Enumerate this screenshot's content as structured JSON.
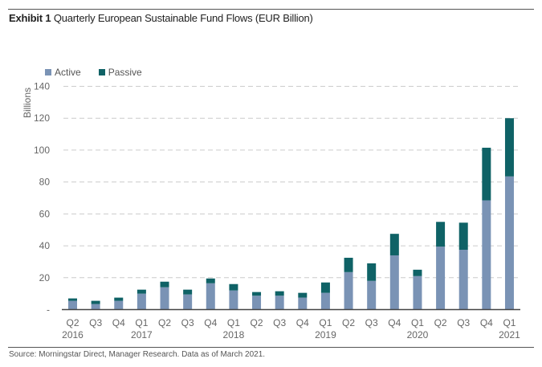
{
  "title": {
    "bold": "Exhibit 1",
    "rest": "Quarterly European Sustainable Fund Flows (EUR Billion)"
  },
  "source": "Source: Morningstar Direct, Manager Research. Data as of March 2021.",
  "colors": {
    "active": "#7a93b5",
    "passive": "#0f6266",
    "grid": "#cccccc",
    "axis": "#444444"
  },
  "chart_data": {
    "type": "bar",
    "stacked": true,
    "title": "Quarterly European Sustainable Fund Flows (EUR Billion)",
    "xlabel": "",
    "ylabel": "Billions",
    "ylim": [
      0,
      140
    ],
    "yticks": [
      0,
      20,
      40,
      60,
      80,
      100,
      120,
      140
    ],
    "ytick_labels": [
      "-",
      "20",
      "40",
      "60",
      "80",
      "100",
      "120",
      "140"
    ],
    "grid": true,
    "legend_position": "top-left",
    "categories": [
      {
        "q": "Q2",
        "year": "2016"
      },
      {
        "q": "Q3",
        "year": ""
      },
      {
        "q": "Q4",
        "year": ""
      },
      {
        "q": "Q1",
        "year": "2017"
      },
      {
        "q": "Q2",
        "year": ""
      },
      {
        "q": "Q3",
        "year": ""
      },
      {
        "q": "Q4",
        "year": ""
      },
      {
        "q": "Q1",
        "year": "2018"
      },
      {
        "q": "Q2",
        "year": ""
      },
      {
        "q": "Q3",
        "year": ""
      },
      {
        "q": "Q4",
        "year": ""
      },
      {
        "q": "Q1",
        "year": "2019"
      },
      {
        "q": "Q2",
        "year": ""
      },
      {
        "q": "Q3",
        "year": ""
      },
      {
        "q": "Q4",
        "year": ""
      },
      {
        "q": "Q1",
        "year": "2020"
      },
      {
        "q": "Q2",
        "year": ""
      },
      {
        "q": "Q3",
        "year": ""
      },
      {
        "q": "Q4",
        "year": ""
      },
      {
        "q": "Q1",
        "year": "2021"
      }
    ],
    "series": [
      {
        "name": "Active",
        "values": [
          5.5,
          3.5,
          5.5,
          10,
          14,
          9.5,
          16.5,
          12,
          8.7,
          8.7,
          7.5,
          10.5,
          23.5,
          18,
          34,
          21,
          39.5,
          37.5,
          68.5,
          83.5
        ]
      },
      {
        "name": "Passive",
        "values": [
          1.5,
          2,
          2,
          2.5,
          3.5,
          3,
          3,
          4,
          2.3,
          2.8,
          3,
          6.5,
          9,
          11,
          13.5,
          4,
          15.5,
          17,
          33,
          36.5
        ]
      }
    ]
  }
}
